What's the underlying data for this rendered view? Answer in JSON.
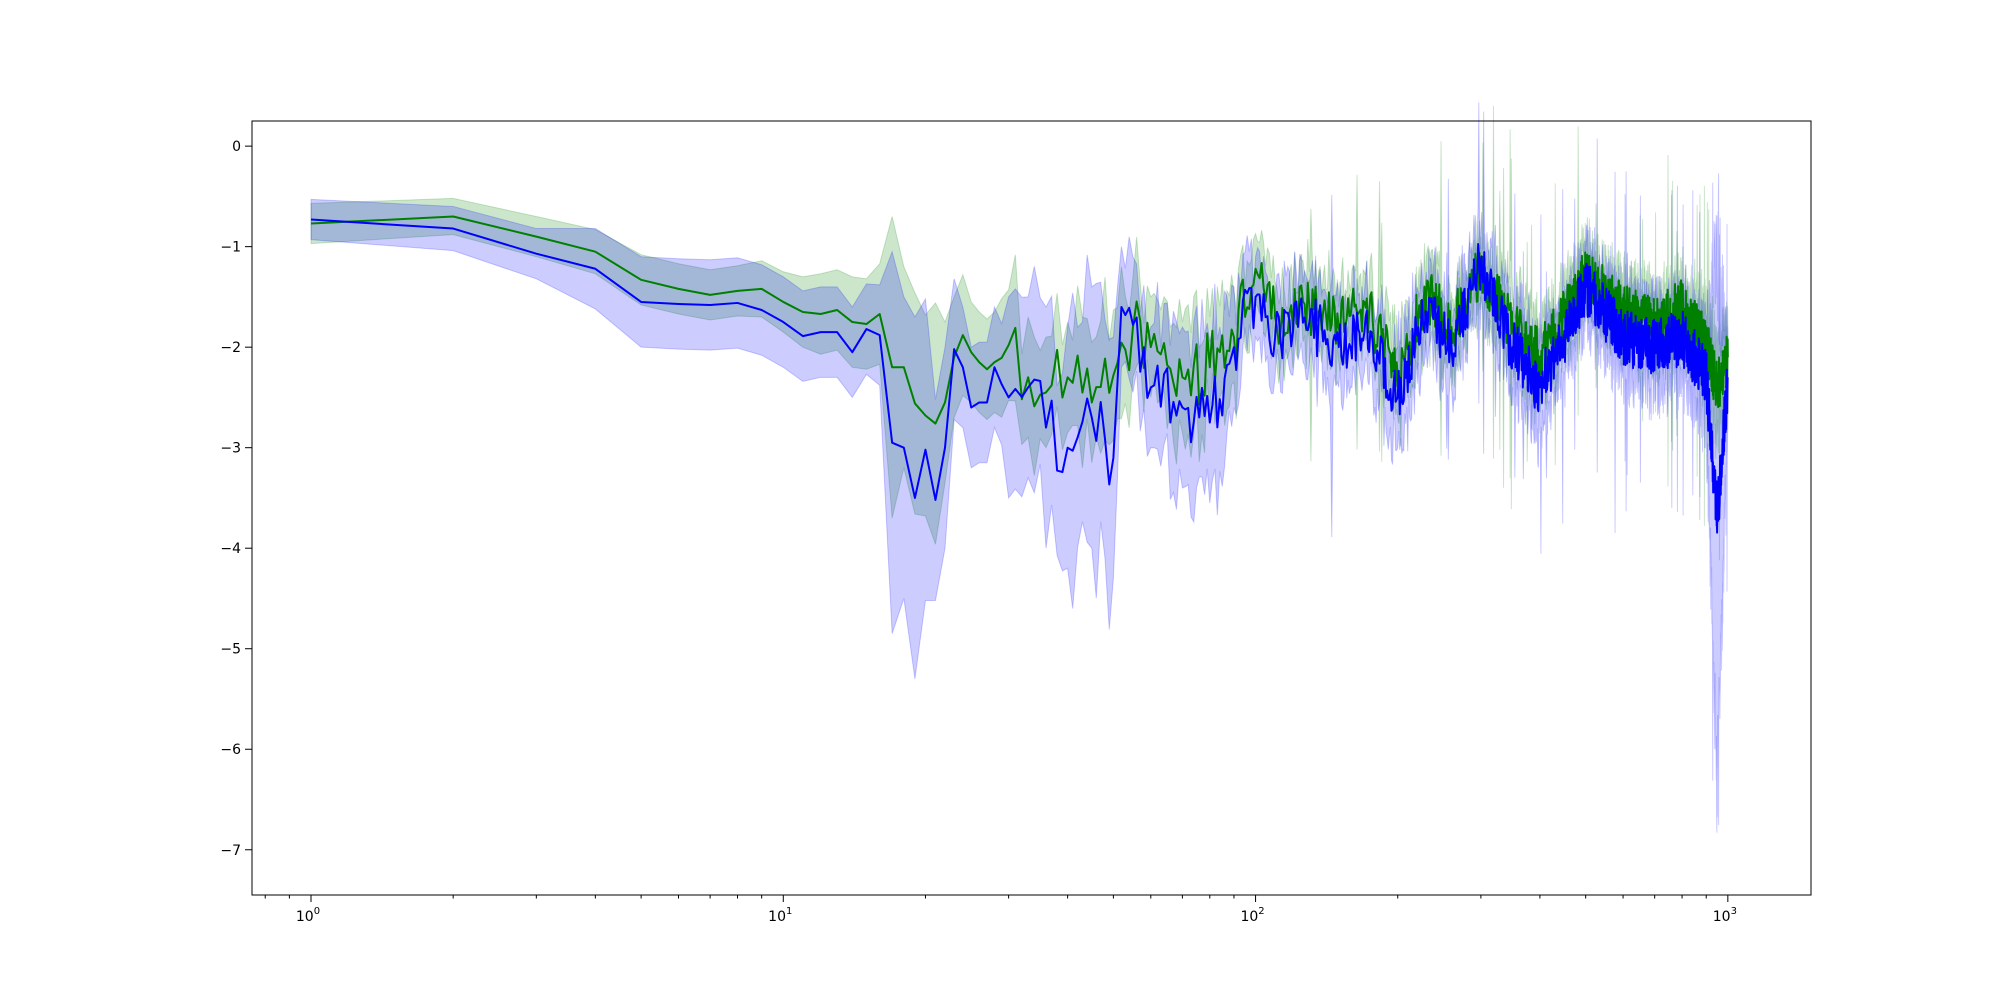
{
  "chart_data": {
    "type": "line",
    "xscale": "log",
    "xlim": [
      0.75,
      1500
    ],
    "ylim": [
      -7.45,
      0.25
    ],
    "grid": false,
    "xticks": [
      {
        "value": 1,
        "base": "10",
        "exp": "0"
      },
      {
        "value": 10,
        "base": "10",
        "exp": "1"
      },
      {
        "value": 100,
        "base": "10",
        "exp": "2"
      },
      {
        "value": 1000,
        "base": "10",
        "exp": "3"
      }
    ],
    "yticks": [
      {
        "value": 0,
        "label": "0"
      },
      {
        "value": -1,
        "label": "−1"
      },
      {
        "value": -2,
        "label": "−2"
      },
      {
        "value": -3,
        "label": "−3"
      },
      {
        "value": -4,
        "label": "−4"
      },
      {
        "value": -5,
        "label": "−5"
      },
      {
        "value": -6,
        "label": "−6"
      },
      {
        "value": -7,
        "label": "−7"
      }
    ],
    "series": [
      {
        "color": "#008000",
        "band_color": "#008000",
        "band_opacity": 0.2,
        "anchors": [
          [
            1,
            -0.77,
            0.2
          ],
          [
            2,
            -0.7,
            0.18
          ],
          [
            3,
            -0.9,
            0.2
          ],
          [
            4,
            -1.05,
            0.22
          ],
          [
            5,
            -1.33,
            0.25
          ],
          [
            6,
            -1.42,
            0.25
          ],
          [
            7,
            -1.48,
            0.25
          ],
          [
            8,
            -1.44,
            0.25
          ],
          [
            9,
            -1.42,
            0.28
          ],
          [
            10,
            -1.55,
            0.3
          ],
          [
            11,
            -1.65,
            0.35
          ],
          [
            12,
            -1.67,
            0.4
          ],
          [
            13,
            -1.63,
            0.4
          ],
          [
            14,
            -1.75,
            0.45
          ],
          [
            15,
            -1.77,
            0.45
          ],
          [
            16,
            -1.67,
            0.5
          ],
          [
            17,
            -2.2,
            1.5
          ],
          [
            18,
            -2.2,
            1.0
          ],
          [
            19,
            -2.56,
            1.1
          ],
          [
            20,
            -2.68,
            1.0
          ],
          [
            21,
            -2.76,
            1.2
          ],
          [
            22,
            -2.55,
            0.8
          ],
          [
            23,
            -2.1,
            0.6
          ],
          [
            24,
            -1.88,
            0.6
          ],
          [
            25,
            -2.05,
            0.5
          ],
          [
            26,
            -2.15,
            0.5
          ],
          [
            27,
            -2.22,
            0.5
          ],
          [
            28,
            -2.15,
            0.5
          ],
          [
            30,
            -1.98,
            0.55
          ],
          [
            33,
            -2.3,
            0.6
          ],
          [
            36,
            -2.45,
            0.55
          ],
          [
            40,
            -2.3,
            0.55
          ],
          [
            45,
            -2.55,
            0.6
          ],
          [
            50,
            -2.28,
            0.65
          ],
          [
            55,
            -1.8,
            0.5
          ],
          [
            60,
            -2.0,
            0.5
          ],
          [
            70,
            -2.3,
            0.55
          ],
          [
            80,
            -2.2,
            0.5
          ],
          [
            90,
            -1.9,
            0.45
          ],
          [
            100,
            -1.22,
            0.35
          ],
          [
            110,
            -1.7,
            0.35
          ],
          [
            130,
            -1.6,
            0.35
          ],
          [
            150,
            -1.8,
            0.35
          ],
          [
            170,
            -1.55,
            0.3
          ],
          [
            200,
            -2.3,
            0.4
          ],
          [
            230,
            -1.45,
            0.35
          ],
          [
            260,
            -1.8,
            0.35
          ],
          [
            300,
            -1.2,
            0.3
          ],
          [
            350,
            -1.8,
            0.35
          ],
          [
            400,
            -2.1,
            0.35
          ],
          [
            450,
            -1.7,
            0.3
          ],
          [
            500,
            -1.3,
            0.3
          ],
          [
            600,
            -1.65,
            0.3
          ],
          [
            700,
            -1.8,
            0.3
          ],
          [
            800,
            -1.6,
            0.3
          ],
          [
            900,
            -2.0,
            0.35
          ],
          [
            950,
            -2.4,
            0.45
          ],
          [
            1000,
            -2.1,
            0.35
          ]
        ]
      },
      {
        "color": "#0000ff",
        "band_color": "#0000ff",
        "band_opacity": 0.2,
        "anchors": [
          [
            1,
            -0.73,
            0.2
          ],
          [
            2,
            -0.82,
            0.22
          ],
          [
            3,
            -1.07,
            0.25
          ],
          [
            4,
            -1.22,
            0.4
          ],
          [
            5,
            -1.55,
            0.45
          ],
          [
            6,
            -1.57,
            0.45
          ],
          [
            7,
            -1.58,
            0.45
          ],
          [
            8,
            -1.56,
            0.45
          ],
          [
            9,
            -1.63,
            0.45
          ],
          [
            10,
            -1.75,
            0.45
          ],
          [
            11,
            -1.89,
            0.45
          ],
          [
            12,
            -1.85,
            0.45
          ],
          [
            13,
            -1.85,
            0.45
          ],
          [
            14,
            -2.05,
            0.45
          ],
          [
            15,
            -1.82,
            0.45
          ],
          [
            16,
            -1.88,
            0.5
          ],
          [
            17,
            -2.95,
            1.9
          ],
          [
            18,
            -3.0,
            1.5
          ],
          [
            19,
            -3.5,
            1.8
          ],
          [
            20,
            -3.02,
            1.5
          ],
          [
            21,
            -3.52,
            1.0
          ],
          [
            22,
            -3.0,
            1.0
          ],
          [
            23,
            -2.02,
            0.7
          ],
          [
            24,
            -2.2,
            0.6
          ],
          [
            25,
            -2.6,
            0.6
          ],
          [
            26,
            -2.55,
            0.6
          ],
          [
            27,
            -2.55,
            0.6
          ],
          [
            28,
            -2.2,
            0.6
          ],
          [
            30,
            -2.5,
            1.0
          ],
          [
            33,
            -2.4,
            0.9
          ],
          [
            36,
            -2.8,
            1.2
          ],
          [
            40,
            -3.0,
            1.2
          ],
          [
            45,
            -2.7,
            1.3
          ],
          [
            50,
            -3.1,
            1.2
          ],
          [
            52,
            -1.6,
            0.6
          ],
          [
            60,
            -2.4,
            0.6
          ],
          [
            70,
            -2.6,
            0.8
          ],
          [
            80,
            -2.75,
            0.8
          ],
          [
            90,
            -2.0,
            0.6
          ],
          [
            100,
            -1.5,
            0.4
          ],
          [
            110,
            -1.9,
            0.4
          ],
          [
            130,
            -1.75,
            0.4
          ],
          [
            150,
            -2.0,
            0.4
          ],
          [
            170,
            -1.85,
            0.4
          ],
          [
            200,
            -2.5,
            0.5
          ],
          [
            230,
            -1.65,
            0.4
          ],
          [
            260,
            -2.0,
            0.4
          ],
          [
            300,
            -1.15,
            0.35
          ],
          [
            350,
            -2.0,
            0.4
          ],
          [
            400,
            -2.4,
            0.45
          ],
          [
            450,
            -1.9,
            0.35
          ],
          [
            500,
            -1.4,
            0.35
          ],
          [
            600,
            -1.9,
            0.4
          ],
          [
            700,
            -2.0,
            0.4
          ],
          [
            800,
            -1.9,
            0.4
          ],
          [
            900,
            -2.3,
            0.45
          ],
          [
            950,
            -3.7,
            2.5
          ],
          [
            1000,
            -2.3,
            0.45
          ]
        ]
      }
    ]
  }
}
